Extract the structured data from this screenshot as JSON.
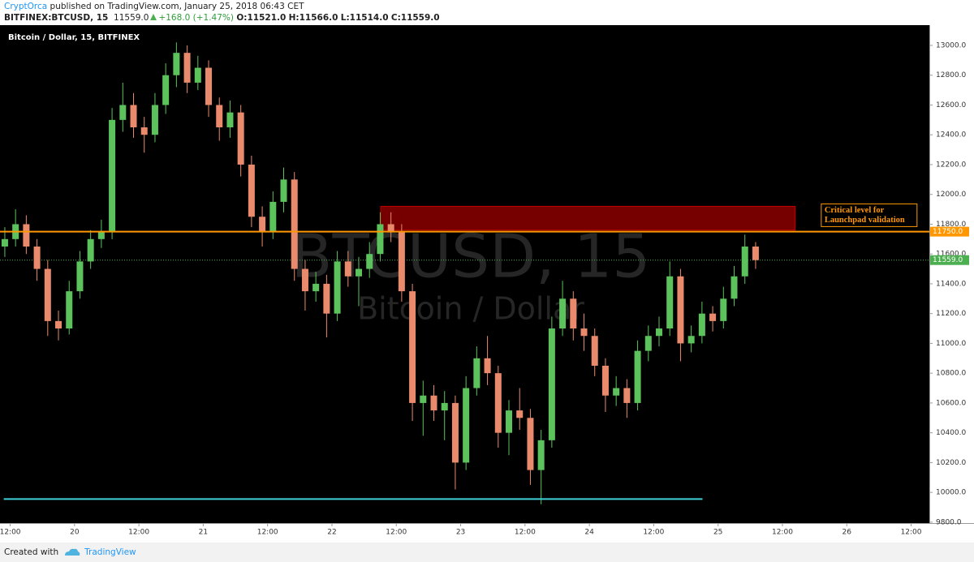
{
  "header": {
    "author": "CryptOrca",
    "published": "published on TradingView.com, January 25, 2018 06:43 CET",
    "symbol": "BITFINEX:BTCUSD, 15",
    "last": "11559.0",
    "change": "+168.0 (+1.47%)",
    "ohlc": [
      "O:11521.0",
      "H:11566.0",
      "L:11514.0",
      "C:11559.0"
    ]
  },
  "footer": {
    "created": "Created with",
    "brand": "TradingView"
  },
  "chart_data": {
    "type": "candlestick",
    "title": "Bitcoin / Dollar, 15, BITFINEX",
    "watermark": [
      "BTCUSD, 15",
      "Bitcoin / Dollar"
    ],
    "up_color": "#5cc25c",
    "down_color": "#ea8a6c",
    "grid": false,
    "x": [
      11,
      13,
      15,
      17,
      19,
      21,
      23,
      25,
      27,
      29,
      31,
      33,
      35,
      37,
      39,
      41,
      43,
      45,
      47,
      49,
      51,
      53,
      55,
      57,
      59,
      61,
      63,
      65,
      67,
      69,
      71,
      73,
      75,
      77,
      79,
      81,
      83,
      85,
      87,
      89,
      91,
      93,
      95,
      97,
      99,
      101,
      103,
      105,
      107,
      109,
      111,
      113,
      115,
      117,
      119,
      121,
      123,
      125,
      127,
      129,
      131,
      133,
      135,
      137,
      139,
      141,
      143,
      145,
      147,
      149,
      151
    ],
    "open": [
      11650,
      11700,
      11800,
      11650,
      11500,
      11150,
      11100,
      11350,
      11550,
      11700,
      11750,
      12500,
      12600,
      12450,
      12400,
      12600,
      12800,
      12950,
      12750,
      12850,
      12600,
      12450,
      12550,
      12200,
      11850,
      11750,
      11950,
      12100,
      11500,
      11350,
      11400,
      11200,
      11550,
      11450,
      11500,
      11600,
      11800,
      11750,
      11350,
      10600,
      10650,
      10550,
      10600,
      10200,
      10700,
      10900,
      10800,
      10400,
      10550,
      10500,
      10150,
      10350,
      11100,
      11300,
      11100,
      11050,
      10850,
      10650,
      10700,
      10600,
      10950,
      11050,
      11100,
      11450,
      11000,
      11050,
      11200,
      11150,
      11300,
      11450,
      11650
    ],
    "high": [
      11780,
      11900,
      11860,
      11700,
      11560,
      11220,
      11420,
      11620,
      11760,
      11830,
      12580,
      12750,
      12680,
      12520,
      12680,
      12880,
      13020,
      13000,
      12930,
      12900,
      12650,
      12630,
      12600,
      12260,
      11920,
      12020,
      12180,
      12150,
      11560,
      11480,
      11460,
      11620,
      11620,
      11580,
      11680,
      11880,
      11880,
      11800,
      11400,
      10750,
      10720,
      10680,
      10650,
      10780,
      10980,
      11050,
      10850,
      10620,
      10700,
      10560,
      10420,
      11180,
      11420,
      11350,
      11200,
      11100,
      10900,
      10780,
      10760,
      11020,
      11120,
      11180,
      11550,
      11500,
      11120,
      11280,
      11250,
      11380,
      11520,
      11730,
      11680
    ],
    "low": [
      11580,
      11650,
      11600,
      11420,
      11050,
      11020,
      11060,
      11300,
      11500,
      11640,
      11700,
      12420,
      12380,
      12280,
      12350,
      12540,
      12720,
      12680,
      12700,
      12520,
      12360,
      12380,
      12120,
      11780,
      11650,
      11700,
      11880,
      11420,
      11220,
      11280,
      11040,
      11150,
      11380,
      11250,
      11440,
      11550,
      11680,
      11280,
      10480,
      10380,
      10480,
      10350,
      10020,
      10150,
      10650,
      10720,
      10300,
      10250,
      10420,
      10050,
      9920,
      10300,
      11050,
      11020,
      10950,
      10780,
      10540,
      10580,
      10500,
      10550,
      10880,
      10980,
      11050,
      10880,
      10940,
      11000,
      11080,
      11100,
      11250,
      11400,
      11500
    ],
    "close": [
      11700,
      11800,
      11650,
      11500,
      11150,
      11100,
      11350,
      11550,
      11700,
      11750,
      12500,
      12600,
      12450,
      12400,
      12600,
      12800,
      12950,
      12750,
      12850,
      12600,
      12450,
      12550,
      12200,
      11850,
      11750,
      11950,
      12100,
      11500,
      11350,
      11400,
      11200,
      11550,
      11450,
      11500,
      11600,
      11800,
      11750,
      11350,
      10600,
      10650,
      10550,
      10600,
      10200,
      10700,
      10900,
      10800,
      10400,
      10550,
      10500,
      10150,
      10350,
      11100,
      11300,
      11100,
      11050,
      10850,
      10650,
      10700,
      10600,
      10950,
      11050,
      11100,
      11450,
      11000,
      11050,
      11200,
      11150,
      11300,
      11450,
      11650,
      11559
    ],
    "xlim": [
      10.1,
      183.4
    ],
    "ylim": [
      9794,
      13136
    ],
    "xticks": [
      {
        "value": 12,
        "label": "12:00"
      },
      {
        "value": 24,
        "label": "20"
      },
      {
        "value": 36,
        "label": "12:00"
      },
      {
        "value": 48,
        "label": "21"
      },
      {
        "value": 60,
        "label": "12:00"
      },
      {
        "value": 72,
        "label": "22"
      },
      {
        "value": 84,
        "label": "12:00"
      },
      {
        "value": 96,
        "label": "23"
      },
      {
        "value": 108,
        "label": "12:00"
      },
      {
        "value": 120,
        "label": "24"
      },
      {
        "value": 132,
        "label": "12:00"
      },
      {
        "value": 144,
        "label": "25"
      },
      {
        "value": 156,
        "label": "12:00"
      },
      {
        "value": 168,
        "label": "26"
      },
      {
        "value": 180,
        "label": "12:00"
      }
    ],
    "yticks": [
      {
        "value": 9800,
        "label": "9800.0"
      },
      {
        "value": 10000,
        "label": "10000.0"
      },
      {
        "value": 10200,
        "label": "10200.0"
      },
      {
        "value": 10400,
        "label": "10400.0"
      },
      {
        "value": 10600,
        "label": "10600.0"
      },
      {
        "value": 10800,
        "label": "10800.0"
      },
      {
        "value": 11000,
        "label": "11000.0"
      },
      {
        "value": 11200,
        "label": "11200.0"
      },
      {
        "value": 11400,
        "label": "11400.0"
      },
      {
        "value": 11600,
        "label": "11600.0"
      },
      {
        "value": 11800,
        "label": "11800.0"
      },
      {
        "value": 12000,
        "label": "12000.0"
      },
      {
        "value": 12200,
        "label": "12200.0"
      },
      {
        "value": 12400,
        "label": "12400.0"
      },
      {
        "value": 12600,
        "label": "12600.0"
      },
      {
        "value": 12800,
        "label": "12800.0"
      },
      {
        "value": 13000,
        "label": "13000.0"
      }
    ],
    "zone": {
      "x": [
        81.1,
        158.4
      ],
      "y": [
        11760,
        11920
      ],
      "color": "#8b0000"
    },
    "support_line": {
      "x": [
        10.8,
        141.1
      ],
      "value": 9955,
      "color": "#3fd0d8"
    },
    "level_line": {
      "value": 11750,
      "label": "11750.0",
      "color": "#ff9800"
    },
    "last_price_line": {
      "value": 11559,
      "label": "11559.0",
      "color": "#4caf50"
    },
    "annotation": {
      "lines": [
        "Critical level for",
        "Launchpad validation"
      ],
      "color": "#ff9800"
    }
  }
}
